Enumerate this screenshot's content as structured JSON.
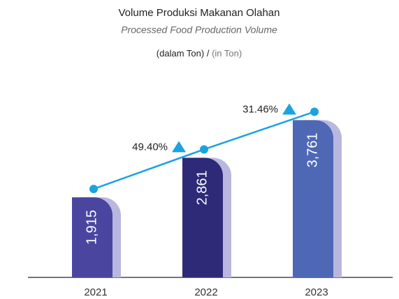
{
  "chart_data": {
    "type": "bar",
    "title": "Volume Produksi Makanan Olahan",
    "subtitle": "Processed Food Production Volume",
    "unit": {
      "id": "(dalam Ton)",
      "separator": "/",
      "en": "(in Ton)"
    },
    "categories": [
      "2021",
      "2022",
      "2023"
    ],
    "values": [
      1915,
      2861,
      3761
    ],
    "value_labels": [
      "1,915",
      "2,861",
      "3,761"
    ],
    "colors": [
      "#4a46a0",
      "#2e2a78",
      "#4f68b5"
    ],
    "shadow_color": "#b9b7de",
    "growth": [
      null,
      49.4,
      31.46
    ],
    "growth_labels": [
      null,
      "49.40%",
      "31.46%"
    ],
    "line_color": "#1aa3e0",
    "ylim": [
      0,
      4000
    ]
  }
}
